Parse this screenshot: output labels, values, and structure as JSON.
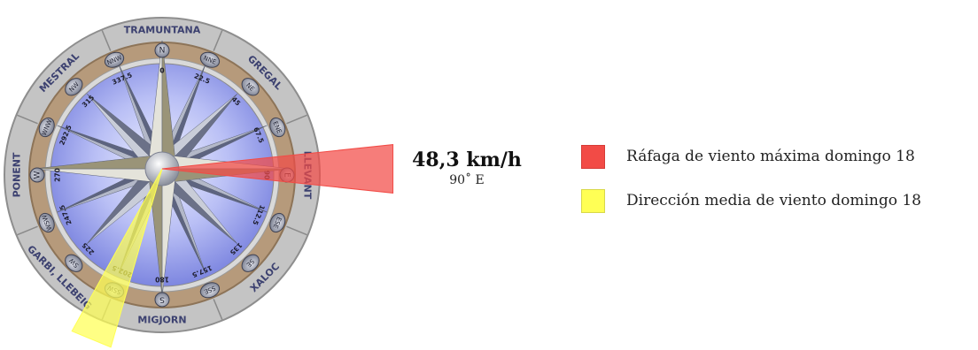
{
  "colors": {
    "gust": "#f24b46",
    "mean": "#ffff55",
    "ring_outer": "#c2c2c2",
    "ring_brown": "#b69a7b",
    "ring_inner": "#d8d8d8",
    "face_blue": "#8e96e8"
  },
  "rose": {
    "winds": [
      "TRAMUNTANA",
      "GREGAL",
      "LLEVANT",
      "XALOC",
      "MIGJORN",
      "GARBI, LLEBEIG",
      "PONENT",
      "MESTRAL"
    ],
    "points": [
      "N",
      "NNE",
      "NE",
      "ENE",
      "E",
      "ESE",
      "SE",
      "SSE",
      "S",
      "SSW",
      "SW",
      "WSW",
      "W",
      "WNW",
      "NW",
      "NNW"
    ],
    "degrees": [
      "0",
      "22.5",
      "45",
      "67.5",
      "90",
      "112.5",
      "135",
      "157.5",
      "180",
      "202.5",
      "225",
      "247.5",
      "270",
      "292.5",
      "315",
      "337.5"
    ]
  },
  "gust": {
    "speed_text": "48,3 km/h",
    "direction_text": "90˚ E",
    "direction_deg": 90
  },
  "mean": {
    "direction_deg": 202.5
  },
  "legend": [
    {
      "label": "Ráfaga de viento máxima domingo 18",
      "color_key": "gust"
    },
    {
      "label": "Dirección media de viento domingo 18",
      "color_key": "mean"
    }
  ]
}
